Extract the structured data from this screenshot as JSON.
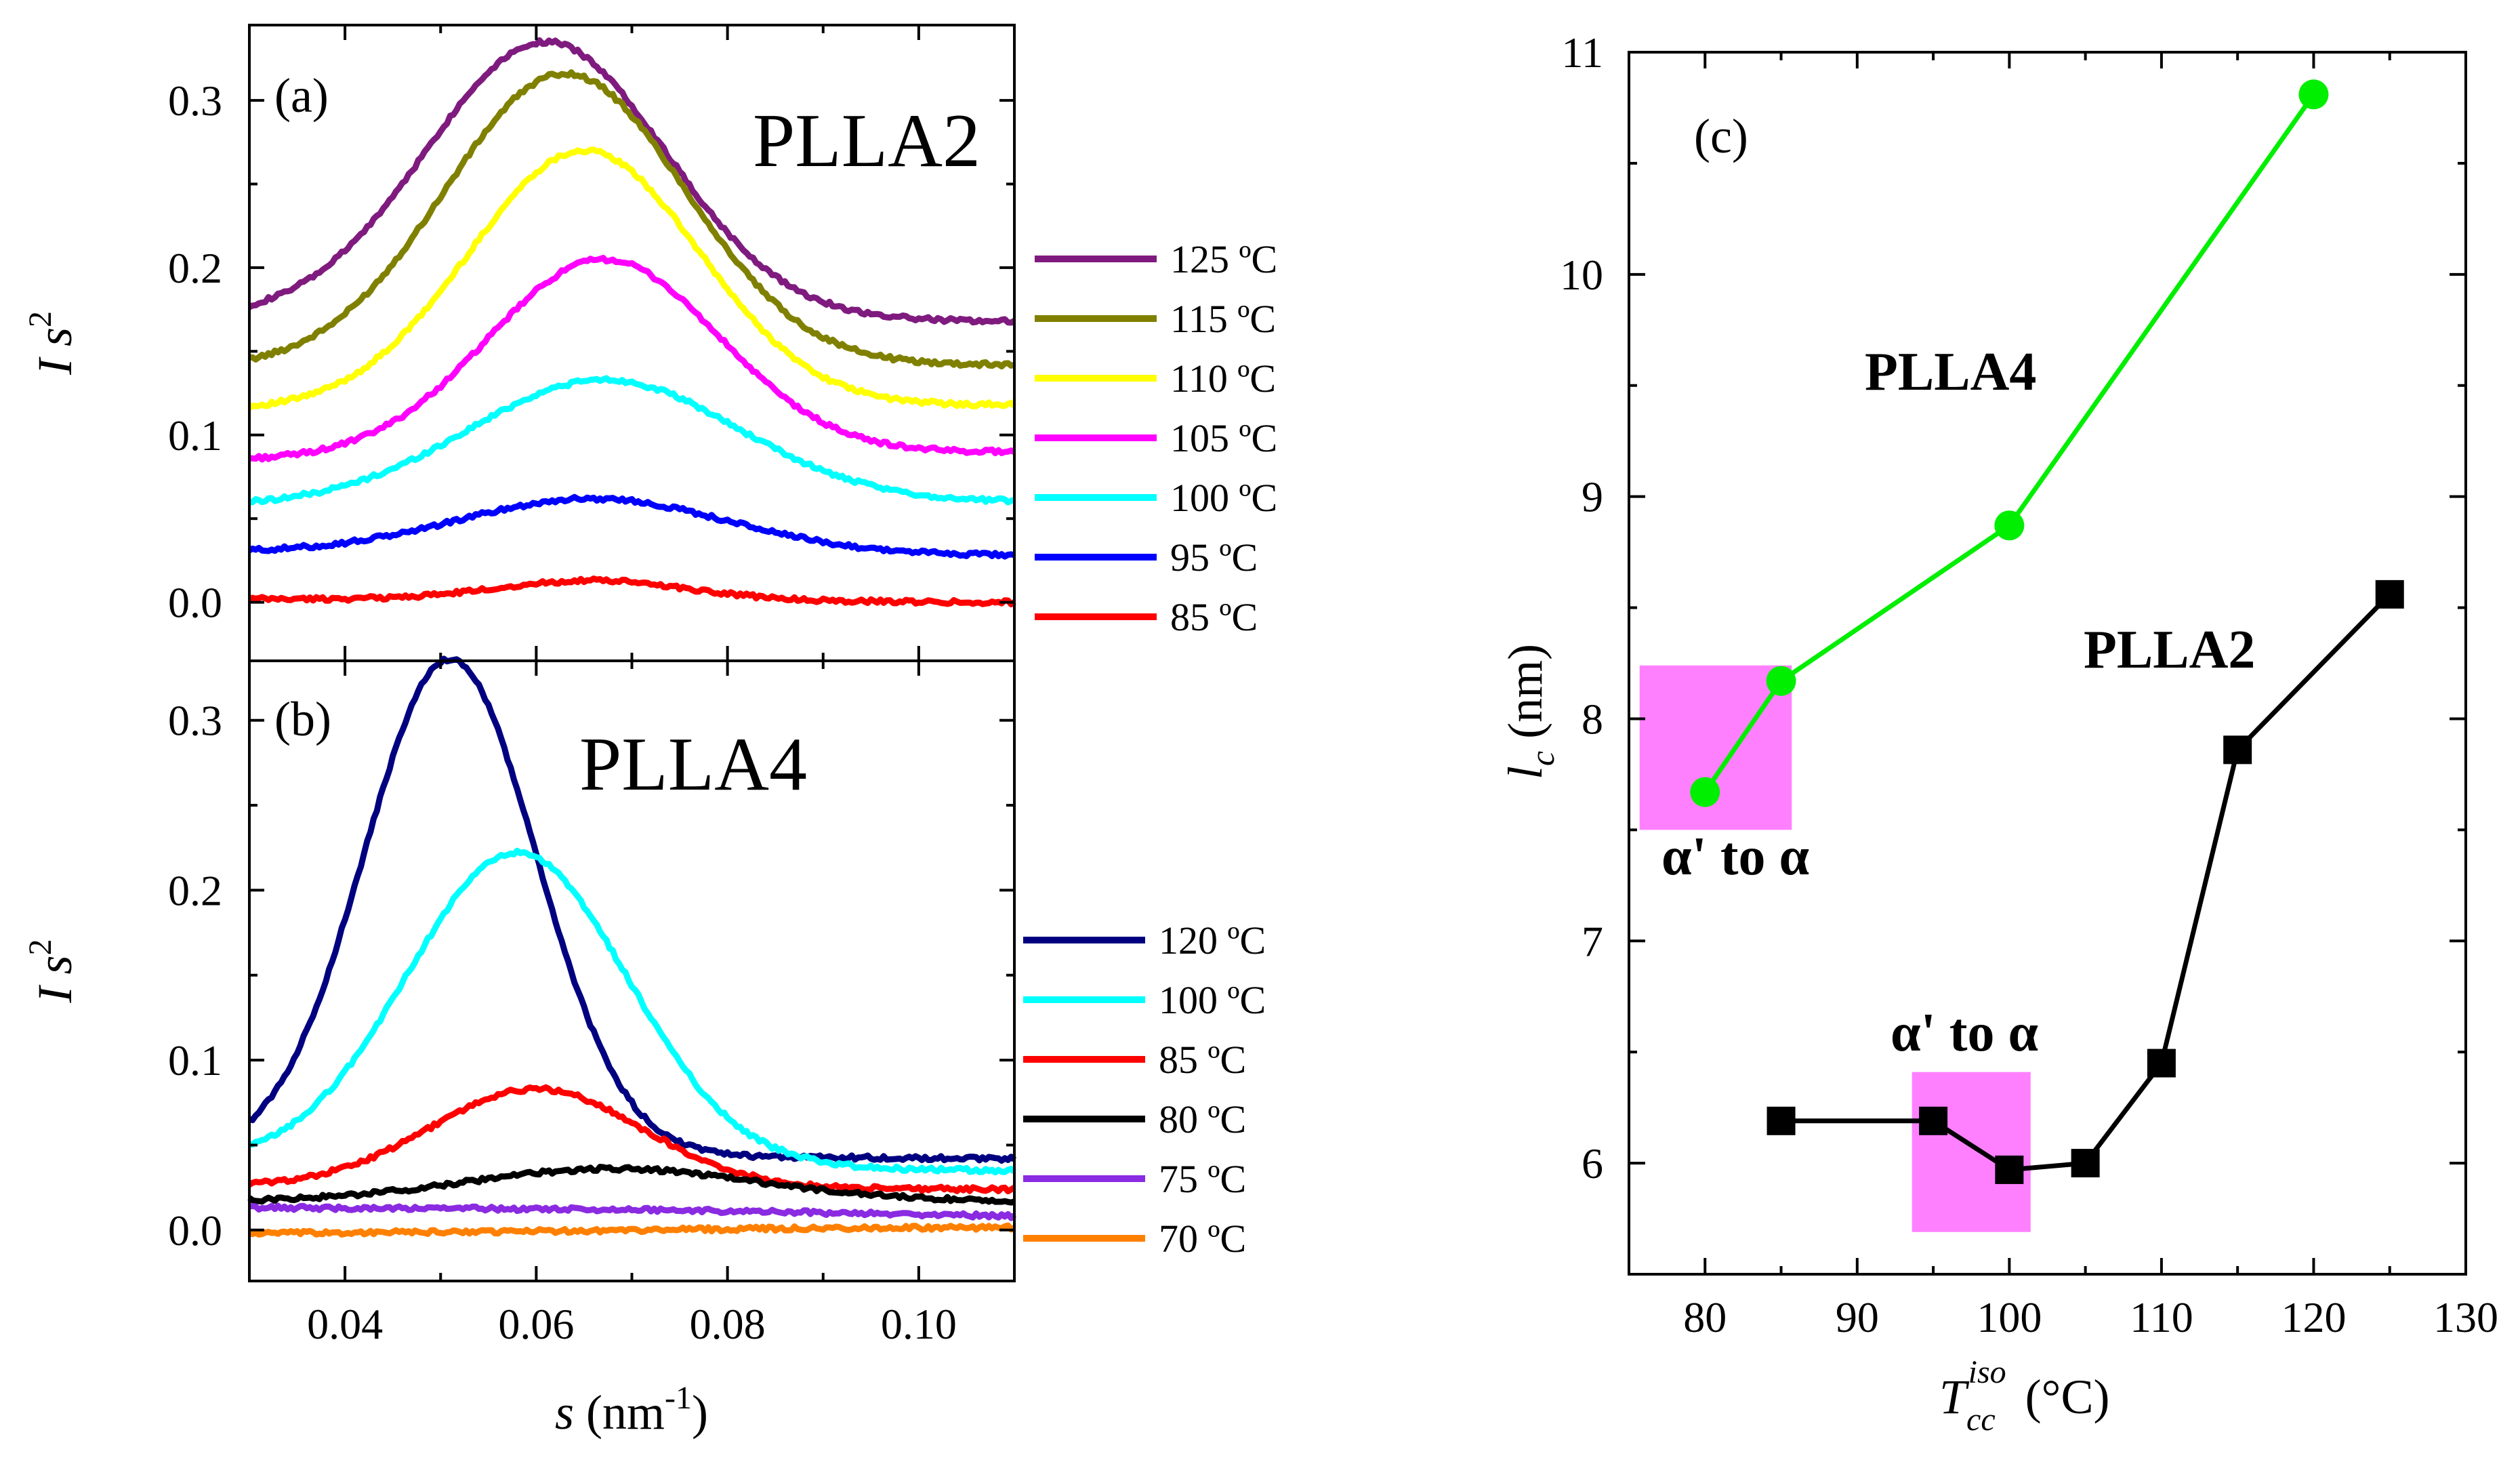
{
  "chart_data": [
    {
      "type": "line",
      "panel_label": "(a)",
      "title": "PLLA2",
      "xlabel": "",
      "ylabel": "I s2",
      "xlim": [
        0.03,
        0.11
      ],
      "ylim": [
        -0.035,
        0.345
      ],
      "x_ticks": [
        0.04,
        0.06,
        0.08,
        0.1
      ],
      "y_ticks": [
        0.0,
        0.1,
        0.2,
        0.3
      ],
      "x_tick_labels": [
        "0.04",
        "0.06",
        "0.08",
        "0.10"
      ],
      "y_tick_labels": [
        "0.0",
        "0.1",
        "0.2",
        "0.3"
      ],
      "legend_position": "right",
      "series": [
        {
          "name": "125 ºC",
          "color": "#7f1b7f",
          "baseline": 0.17,
          "peak": 0.335,
          "peak_x": 0.061,
          "width": 0.0125,
          "tail": 0.168
        },
        {
          "name": "115 ºC",
          "color": "#808000",
          "baseline": 0.14,
          "peak": 0.316,
          "peak_x": 0.063,
          "width": 0.0125,
          "tail": 0.142
        },
        {
          "name": "110 ºC",
          "color": "#ffff00",
          "baseline": 0.115,
          "peak": 0.27,
          "peak_x": 0.065,
          "width": 0.012,
          "tail": 0.118
        },
        {
          "name": "105 ºC",
          "color": "#ff00ff",
          "baseline": 0.085,
          "peak": 0.205,
          "peak_x": 0.067,
          "width": 0.012,
          "tail": 0.09
        },
        {
          "name": "100 ºC",
          "color": "#00ffff",
          "baseline": 0.058,
          "peak": 0.133,
          "peak_x": 0.067,
          "width": 0.014,
          "tail": 0.06
        },
        {
          "name": "95 ºC",
          "color": "#0000ff",
          "baseline": 0.03,
          "peak": 0.062,
          "peak_x": 0.066,
          "width": 0.014,
          "tail": 0.028
        },
        {
          "name": "85 ºC",
          "color": "#ff0000",
          "baseline": 0.002,
          "peak": 0.013,
          "peak_x": 0.066,
          "width": 0.01,
          "tail": 0.0
        }
      ]
    },
    {
      "type": "line",
      "panel_label": "(b)",
      "title": "PLLA4",
      "xlabel": "s (nm-1)",
      "ylabel": "I s2",
      "xlim": [
        0.03,
        0.11
      ],
      "ylim": [
        -0.03,
        0.335
      ],
      "x_ticks": [
        0.04,
        0.06,
        0.08,
        0.1
      ],
      "y_ticks": [
        0.0,
        0.1,
        0.2,
        0.3
      ],
      "x_tick_labels": [
        "0.04",
        "0.06",
        "0.08",
        "0.10"
      ],
      "y_tick_labels": [
        "0.0",
        "0.1",
        "0.2",
        "0.3"
      ],
      "legend_position": "right",
      "series": [
        {
          "name": "120 ºC",
          "color": "#000080",
          "baseline": 0.045,
          "peak": 0.336,
          "peak_x": 0.051,
          "width": 0.009,
          "tail": 0.042
        },
        {
          "name": "100 ºC",
          "color": "#00ffff",
          "baseline": 0.04,
          "peak": 0.222,
          "peak_x": 0.058,
          "width": 0.0115,
          "tail": 0.035
        },
        {
          "name": "85 ºC",
          "color": "#ff0000",
          "baseline": 0.026,
          "peak": 0.083,
          "peak_x": 0.06,
          "width": 0.011,
          "tail": 0.024
        },
        {
          "name": "80 ºC",
          "color": "#000000",
          "baseline": 0.017,
          "peak": 0.036,
          "peak_x": 0.068,
          "width": 0.015,
          "tail": 0.017
        },
        {
          "name": "75 ºC",
          "color": "#8a2be2",
          "baseline": 0.013,
          "peak": 0.012,
          "peak_x": 0.07,
          "width": 0.02,
          "tail": 0.008
        },
        {
          "name": "70 ºC",
          "color": "#ff8000",
          "baseline": -0.002,
          "peak": 0.001,
          "peak_x": 0.09,
          "width": 0.02,
          "tail": 0.001
        }
      ]
    },
    {
      "type": "line",
      "panel_label": "(c)",
      "title": "",
      "xlabel": "Tcc iso (°C)",
      "ylabel": "lc (nm)",
      "xlim": [
        75,
        130
      ],
      "ylim": [
        5.5,
        11
      ],
      "x_ticks": [
        80,
        90,
        100,
        110,
        120,
        130
      ],
      "y_ticks": [
        6,
        7,
        8,
        9,
        10,
        11
      ],
      "x_tick_labels": [
        "80",
        "90",
        "100",
        "110",
        "120",
        "130"
      ],
      "y_tick_labels": [
        "6",
        "7",
        "8",
        "9",
        "10",
        "11"
      ],
      "series": [
        {
          "name": "PLLA4",
          "color": "#00ee00",
          "marker": "circle",
          "x": [
            80,
            85,
            100,
            120
          ],
          "y": [
            7.67,
            8.17,
            8.87,
            10.81
          ]
        },
        {
          "name": "PLLA2",
          "color": "#000000",
          "marker": "square",
          "x": [
            85,
            95,
            100,
            105,
            110,
            115,
            125
          ],
          "y": [
            6.19,
            6.19,
            5.97,
            6.0,
            6.45,
            7.86,
            8.56
          ]
        }
      ],
      "annotations": [
        {
          "text": "α' to α",
          "box_color": "#ff80ff",
          "box_x": [
            75.7,
            85.7
          ],
          "box_y": [
            7.5,
            8.24
          ]
        },
        {
          "text": "α' to α",
          "box_color": "#ff80ff",
          "box_x": [
            93.6,
            101.4
          ],
          "box_y": [
            5.69,
            6.41
          ]
        }
      ]
    }
  ]
}
